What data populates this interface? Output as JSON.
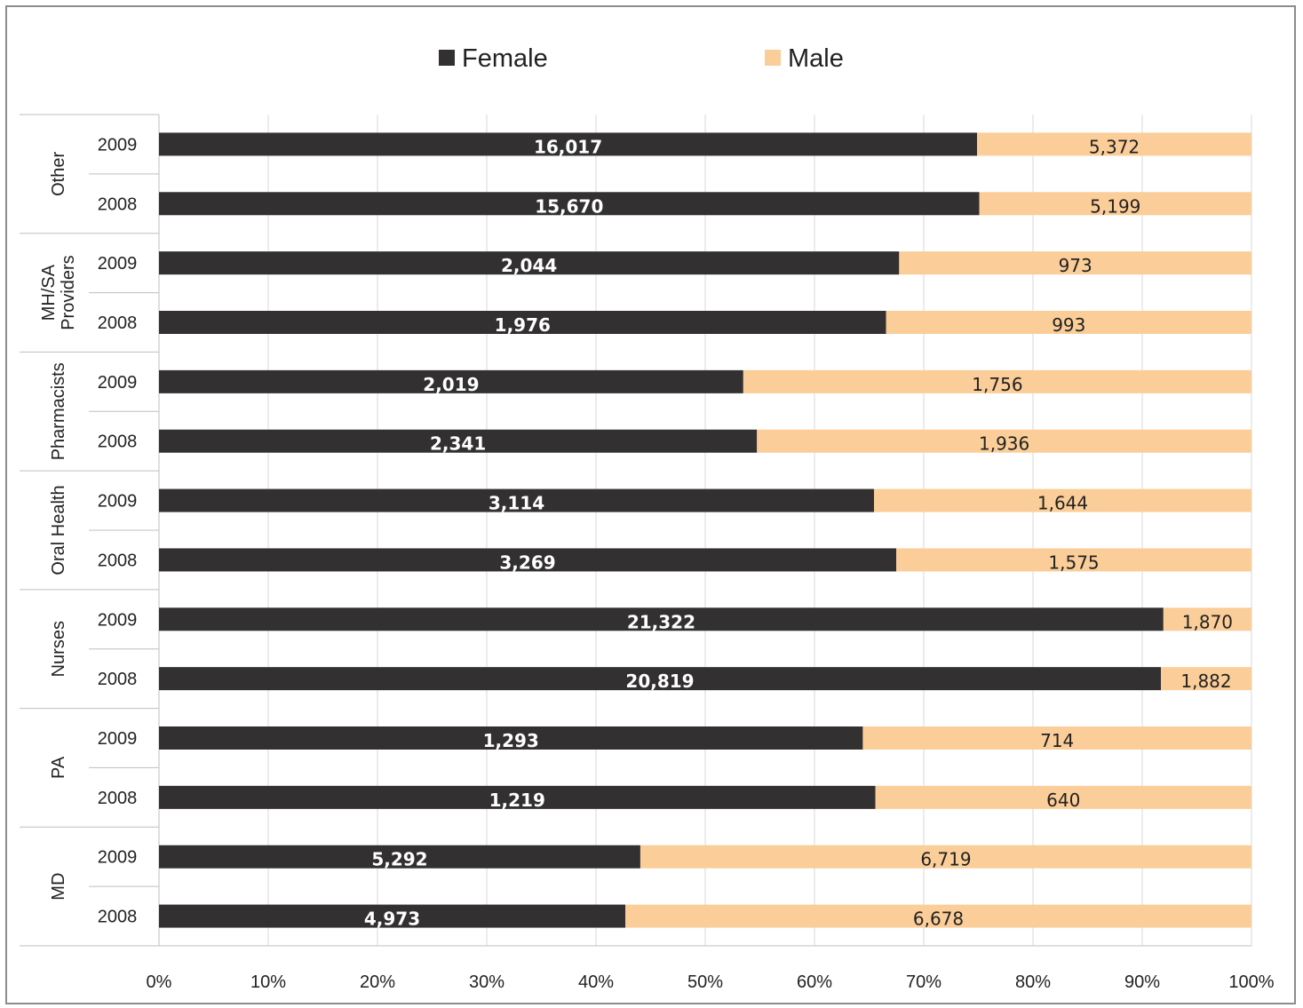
{
  "chart_data": {
    "type": "bar",
    "orientation": "horizontal",
    "stacked": "percent",
    "legend": {
      "position": "top",
      "entries": [
        "Female",
        "Male"
      ]
    },
    "colors": {
      "Female": "#333031",
      "Male": "#fbcd98"
    },
    "grid": true,
    "xlim": [
      0,
      100
    ],
    "x_tick_labels": [
      "0%",
      "10%",
      "20%",
      "30%",
      "40%",
      "50%",
      "60%",
      "70%",
      "80%",
      "90%",
      "100%"
    ],
    "groups": [
      {
        "name": "Other",
        "name_lines": [
          "Other"
        ],
        "years": [
          "2009",
          "2008"
        ],
        "female": [
          16017,
          15670
        ],
        "male": [
          5372,
          5199
        ],
        "female_labels": [
          "16,017",
          "15,670"
        ],
        "male_labels": [
          "5,372",
          "5,199"
        ]
      },
      {
        "name": "MH/SA Providers",
        "name_lines": [
          "MH/SA",
          "Providers"
        ],
        "years": [
          "2009",
          "2008"
        ],
        "female": [
          2044,
          1976
        ],
        "male": [
          973,
          993
        ],
        "female_labels": [
          "2,044",
          "1,976"
        ],
        "male_labels": [
          "973",
          "993"
        ]
      },
      {
        "name": "Pharmacists",
        "name_lines": [
          "Pharmacists"
        ],
        "years": [
          "2009",
          "2008"
        ],
        "female": [
          2019,
          2341
        ],
        "male": [
          1756,
          1936
        ],
        "female_labels": [
          "2,019",
          "2,341"
        ],
        "male_labels": [
          "1,756",
          "1,936"
        ]
      },
      {
        "name": "Oral Health",
        "name_lines": [
          "Oral Health"
        ],
        "years": [
          "2009",
          "2008"
        ],
        "female": [
          3114,
          3269
        ],
        "male": [
          1644,
          1575
        ],
        "female_labels": [
          "3,114",
          "3,269"
        ],
        "male_labels": [
          "1,644",
          "1,575"
        ]
      },
      {
        "name": "Nurses",
        "name_lines": [
          "Nurses"
        ],
        "years": [
          "2009",
          "2008"
        ],
        "female": [
          21322,
          20819
        ],
        "male": [
          1870,
          1882
        ],
        "female_labels": [
          "21,322",
          "20,819"
        ],
        "male_labels": [
          "1,870",
          "1,882"
        ]
      },
      {
        "name": "PA",
        "name_lines": [
          "PA"
        ],
        "years": [
          "2009",
          "2008"
        ],
        "female": [
          1293,
          1219
        ],
        "male": [
          714,
          640
        ],
        "female_labels": [
          "1,293",
          "1,219"
        ],
        "male_labels": [
          "714",
          "640"
        ]
      },
      {
        "name": "MD",
        "name_lines": [
          "MD"
        ],
        "years": [
          "2009",
          "2008"
        ],
        "female": [
          5292,
          4973
        ],
        "male": [
          6719,
          6678
        ],
        "female_labels": [
          "5,292",
          "4,973"
        ],
        "male_labels": [
          "6,719",
          "6,678"
        ]
      }
    ]
  }
}
